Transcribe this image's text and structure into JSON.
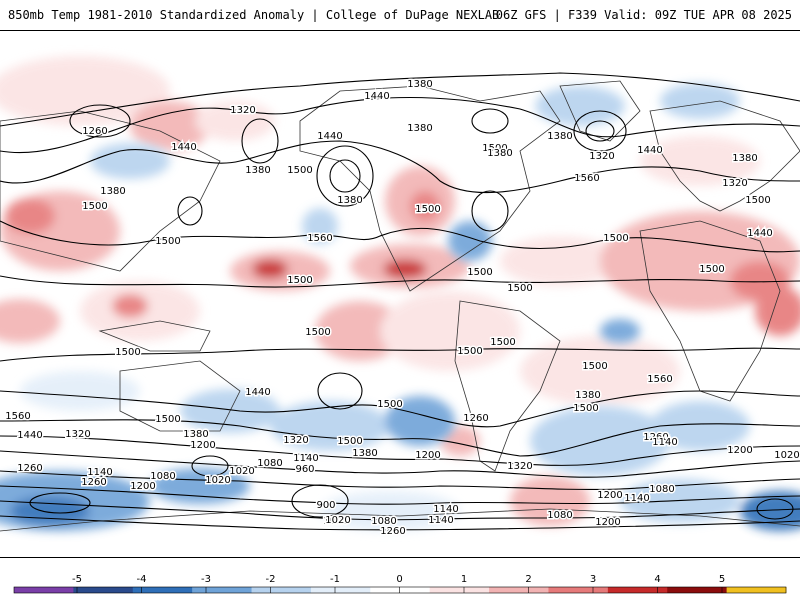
{
  "header": {
    "left_title": "850mb Temp 1981-2010 Standardized Anomaly | College of DuPage NEXLAB",
    "right_title": "06Z GFS | F339 Valid: 09Z TUE APR 08 2025"
  },
  "colors": {
    "ocean_background": "#ffffff",
    "contour_line": "#000000",
    "coastline": "#333333",
    "scale": [
      "#7a3fa8",
      "#2a4a8c",
      "#2f6fb8",
      "#6fa3d8",
      "#b6d2ee",
      "#e3eef9",
      "#ffffff",
      "#fbe3e3",
      "#f2b3b3",
      "#e67a7a",
      "#c62a2a",
      "#8b0d0d",
      "#f0c020"
    ]
  },
  "colorbar": {
    "ticks": [
      "-5",
      "-4",
      "-3",
      "-2",
      "-1",
      "0",
      "1",
      "2",
      "3",
      "4",
      "5"
    ]
  },
  "contour_labels": [
    "1320",
    "1380",
    "1440",
    "1260",
    "1380",
    "1440",
    "1500",
    "1320",
    "1380",
    "1500",
    "1560",
    "1500",
    "1380",
    "1560",
    "1440",
    "1380",
    "1500",
    "1380",
    "1440",
    "1500",
    "1500",
    "1500",
    "1500",
    "1500",
    "1500",
    "1500",
    "1500",
    "1500",
    "1500",
    "1500",
    "1500",
    "1560",
    "1440",
    "1380",
    "1500",
    "1560",
    "1440",
    "1320",
    "1380",
    "1260",
    "1320",
    "1500",
    "1380",
    "1500",
    "1260",
    "1200",
    "1320",
    "1260",
    "1200",
    "1140",
    "1200",
    "1080",
    "1140",
    "1020",
    "1020",
    "1080",
    "960",
    "1200",
    "1140",
    "1200",
    "1020",
    "1080",
    "1140",
    "1080",
    "1020",
    "900",
    "1020",
    "1080",
    "1140",
    "1260",
    "1200",
    "1140",
    "1260",
    "1380",
    "1320",
    "1500",
    "1380",
    "1440"
  ]
}
